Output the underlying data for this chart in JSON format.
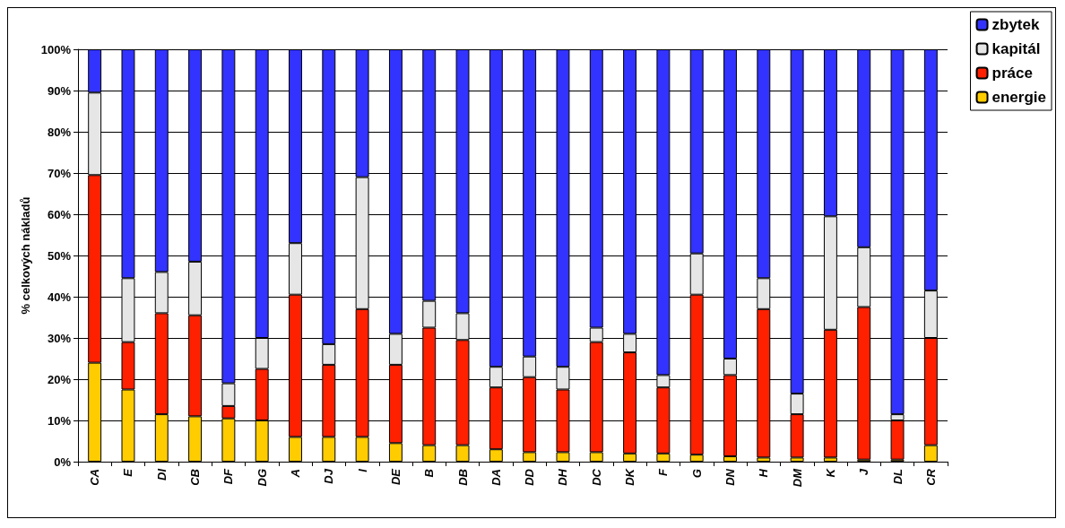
{
  "chart_data": {
    "type": "bar",
    "stacked": true,
    "ylabel": "% celkových nákladů",
    "categories": [
      "CA",
      "E",
      "DI",
      "CB",
      "DF",
      "DG",
      "A",
      "DJ",
      "I",
      "DE",
      "B",
      "DB",
      "DA",
      "DD",
      "DH",
      "DC",
      "DK",
      "F",
      "G",
      "DN",
      "H",
      "DM",
      "K",
      "J",
      "DL",
      "CR"
    ],
    "series": [
      {
        "name": "energie",
        "color": "#ffcc00",
        "values": [
          24,
          17.5,
          11.5,
          11,
          10.5,
          10,
          6,
          6,
          6,
          4.5,
          4,
          4,
          3,
          2.3,
          2.3,
          2.3,
          2,
          2,
          1.7,
          1.3,
          1,
          1,
          1,
          0.5,
          0.5,
          4
        ]
      },
      {
        "name": "práce",
        "color": "#ff2000",
        "values": [
          45.5,
          11.5,
          24.5,
          24.5,
          3,
          12.5,
          34.5,
          17.5,
          31,
          19,
          28.5,
          25.5,
          15,
          18.2,
          15.2,
          26.7,
          24.5,
          16,
          38.8,
          19.7,
          36,
          10.5,
          31,
          37,
          9.5,
          26
        ]
      },
      {
        "name": "kapitál",
        "color": "#e6e6e6",
        "values": [
          20,
          15.5,
          10,
          13,
          5.5,
          7.5,
          12.5,
          5,
          32,
          7.5,
          6.5,
          6.5,
          5,
          5,
          5.5,
          3.5,
          4.5,
          3,
          10,
          4,
          7.5,
          5,
          27.5,
          14.5,
          1.5,
          11.5
        ]
      },
      {
        "name": "zbytek",
        "color": "#3333ff",
        "values": [
          10.5,
          55.5,
          54,
          51.5,
          81,
          70,
          47,
          71.5,
          31,
          69,
          61,
          64,
          77,
          74.5,
          77,
          67.5,
          69,
          79,
          49.5,
          75,
          55.5,
          83.5,
          40.5,
          48,
          88.5,
          58.5
        ]
      }
    ],
    "ylim": [
      0,
      100
    ],
    "yticks": [
      {
        "value": 0,
        "label": "0%"
      },
      {
        "value": 10,
        "label": "10%"
      },
      {
        "value": 20,
        "label": "20%"
      },
      {
        "value": 30,
        "label": "30%"
      },
      {
        "value": 40,
        "label": "40%"
      },
      {
        "value": 50,
        "label": "50%"
      },
      {
        "value": 60,
        "label": "60%"
      },
      {
        "value": 70,
        "label": "70%"
      },
      {
        "value": 80,
        "label": "80%"
      },
      {
        "value": 90,
        "label": "90%"
      },
      {
        "value": 100,
        "label": "100%"
      }
    ],
    "grid": "y",
    "legend": "top right"
  }
}
